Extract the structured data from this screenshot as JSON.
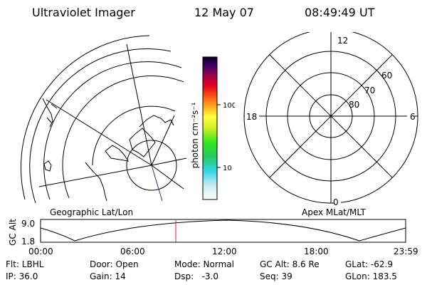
{
  "header": {
    "title": "Ultraviolet Imager",
    "date": "12 May 07",
    "time": "08:49:49 UT"
  },
  "colorbar": {
    "unit_label": "photon cm⁻²s⁻¹",
    "ticks": [
      "100",
      "10"
    ]
  },
  "geo_panel": {
    "label": "Geographic Lat/Lon"
  },
  "polar_panel": {
    "label": "Apex MLat/MLT",
    "mlt_labels": {
      "top": "12",
      "left": "18",
      "right": "6",
      "bottom": "0"
    },
    "lat_labels": [
      "60",
      "70",
      "80"
    ]
  },
  "altitude_plot": {
    "ylabel": "GC Alt",
    "yticks": [
      "9.0",
      "1.8"
    ],
    "xticks": [
      "00:00",
      "06:00",
      "12:00",
      "18:00",
      "23:59"
    ]
  },
  "info": {
    "col1": [
      "Flt: LBHL",
      "IP: 36.0"
    ],
    "col2": [
      "Door: Open",
      "Gain: 14"
    ],
    "col3": [
      "Mode: Normal",
      "Dsp:   -3.0"
    ],
    "col4": [
      "GC Alt: 8.6 Re",
      "Seq: 39"
    ],
    "col5": [
      "GLat: -62.9",
      "GLon: 183.5"
    ]
  },
  "colors": {
    "accent_marker": "#d02020"
  }
}
